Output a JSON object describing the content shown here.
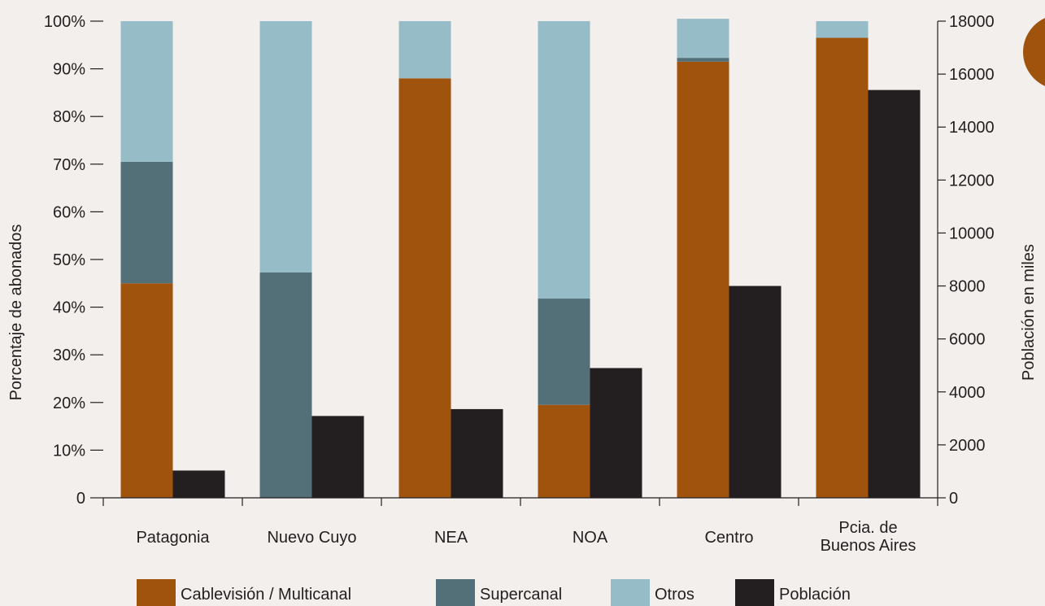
{
  "chart_data": {
    "type": "bar",
    "categories": [
      "Patagonia",
      "Nuevo Cuyo",
      "NEA",
      "NOA",
      "Centro",
      "Pcia. de|Buenos Aires"
    ],
    "stacked_series": [
      {
        "name": "Cablevisión / Multicanal",
        "color": "#a0530d",
        "values": [
          45,
          0,
          88,
          19.5,
          91.5,
          96.5
        ]
      },
      {
        "name": "Supercanal",
        "color": "#536f78",
        "values": [
          25.5,
          47.3,
          0,
          22.3,
          0.8,
          0
        ]
      },
      {
        "name": "Otros",
        "color": "#95bcc7",
        "values": [
          29.5,
          52.7,
          12,
          58.2,
          8.2,
          3.5
        ]
      }
    ],
    "secondary_series": {
      "name": "Población",
      "color": "#231f20",
      "values": [
        1030,
        3090,
        3350,
        4900,
        8000,
        15400
      ]
    },
    "ylabel_left": "Porcentaje de abonados",
    "ylabel_right": "Población en miles",
    "ylim_left": [
      0,
      100
    ],
    "ylim_right": [
      0,
      18000
    ],
    "yticks_left": [
      "0",
      "10%",
      "20%",
      "30%",
      "40%",
      "50%",
      "60%",
      "70%",
      "80%",
      "90%",
      "100%"
    ],
    "yticks_right": [
      "0",
      "2000",
      "4000",
      "6000",
      "8000",
      "10000",
      "12000",
      "14000",
      "16000",
      "18000"
    ],
    "legend_position": "bottom",
    "accent_color": "#a0530d"
  }
}
